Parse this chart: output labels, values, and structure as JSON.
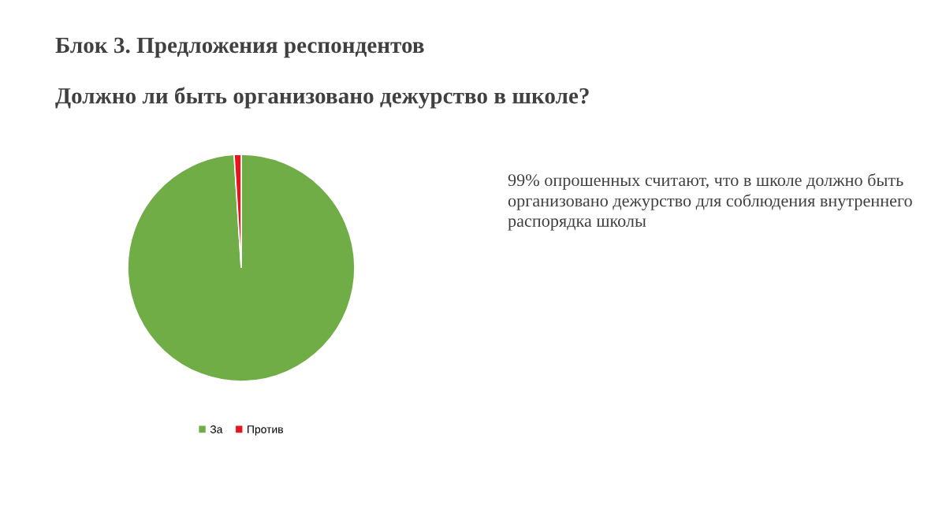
{
  "chart_data": {
    "type": "pie",
    "title": "Блок 3. Предложения респондентов",
    "subtitle": "Должно ли быть организовано дежурство в школе?",
    "categories": [
      "За",
      "Против"
    ],
    "values": [
      99,
      1
    ],
    "colors": [
      "#70ad47",
      "#e8141b"
    ],
    "legend": "bottom",
    "annotations": [
      "99% опрошенных считают, что в школе должно быть организовано дежурство для соблюдения внутреннего распорядка школы"
    ]
  }
}
